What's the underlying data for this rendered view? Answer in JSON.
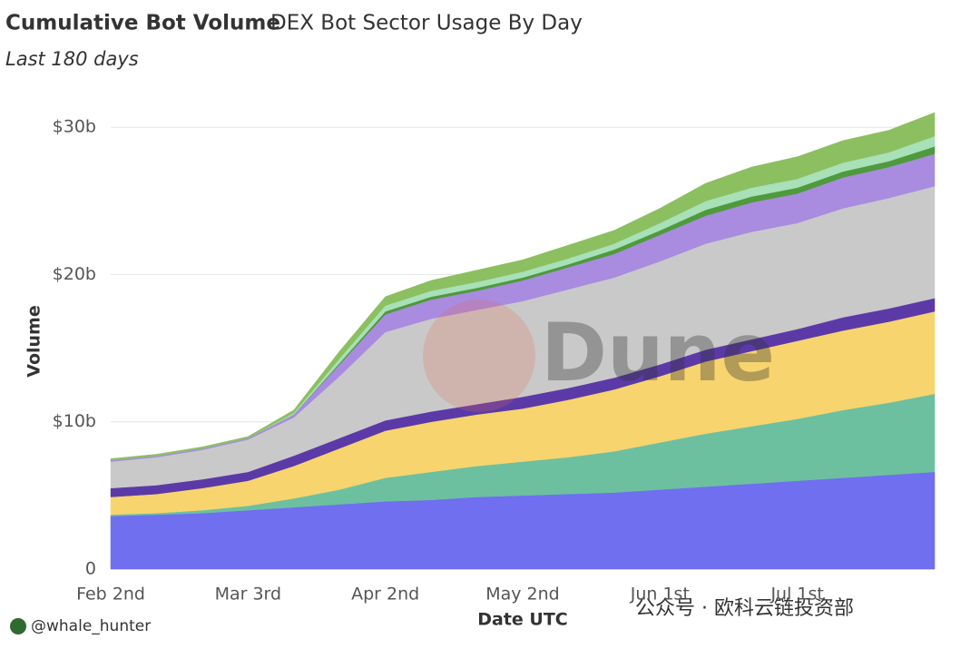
{
  "chart_data": {
    "type": "stacked_area",
    "title": "Cumulative Bot Volume",
    "subtitle": "DEX Bot Sector Usage By Day",
    "caption": "Last 180 days",
    "x_label": "Date UTC",
    "y_label": "Volume",
    "categories": [
      "Feb 2nd",
      null,
      null,
      "Mar 3rd",
      null,
      null,
      "Apr 2nd",
      null,
      null,
      "May 2nd",
      null,
      null,
      "Jun 1st",
      null,
      null,
      "Jul 1st",
      null,
      null,
      null
    ],
    "ylim": [
      0,
      31
    ],
    "yticks": [
      0,
      {
        "value": 10,
        "label": "$10b"
      },
      {
        "value": 20,
        "label": "$20b"
      },
      {
        "value": 30,
        "label": "$30b"
      }
    ],
    "grid": true,
    "series": [
      {
        "color": "#6f6ff0",
        "values": [
          3.6,
          3.7,
          3.8,
          4.0,
          4.2,
          4.4,
          4.6,
          4.7,
          4.9,
          5.0,
          5.1,
          5.2,
          5.4,
          5.6,
          5.8,
          6.0,
          6.2,
          6.4,
          6.6
        ]
      },
      {
        "color": "#6cc0a0",
        "values": [
          0.1,
          0.1,
          0.2,
          0.3,
          0.6,
          1.0,
          1.6,
          1.9,
          2.1,
          2.3,
          2.5,
          2.8,
          3.2,
          3.6,
          3.9,
          4.2,
          4.6,
          4.9,
          5.3
        ]
      },
      {
        "color": "#f7d46e",
        "values": [
          1.2,
          1.3,
          1.5,
          1.7,
          2.2,
          2.8,
          3.2,
          3.4,
          3.5,
          3.6,
          3.9,
          4.2,
          4.5,
          4.9,
          5.1,
          5.3,
          5.4,
          5.5,
          5.6
        ]
      },
      {
        "color": "#5b3aa8",
        "values": [
          0.6,
          0.6,
          0.6,
          0.6,
          0.7,
          0.7,
          0.7,
          0.7,
          0.7,
          0.8,
          0.8,
          0.8,
          0.8,
          0.8,
          0.8,
          0.8,
          0.9,
          0.9,
          0.9
        ]
      },
      {
        "color": "#c9c9c9",
        "values": [
          1.8,
          1.9,
          2.0,
          2.2,
          2.6,
          4.2,
          6.0,
          6.3,
          6.4,
          6.5,
          6.7,
          6.8,
          7.0,
          7.2,
          7.3,
          7.2,
          7.4,
          7.5,
          7.6
        ]
      },
      {
        "color": "#a98be0",
        "values": [
          0.1,
          0.1,
          0.1,
          0.1,
          0.2,
          0.8,
          1.2,
          1.3,
          1.3,
          1.4,
          1.5,
          1.6,
          1.8,
          1.9,
          2.0,
          2.0,
          2.1,
          2.1,
          2.2
        ]
      },
      {
        "color": "#4f9a3c",
        "values": [
          0,
          0,
          0,
          0,
          0,
          0.1,
          0.2,
          0.2,
          0.2,
          0.2,
          0.2,
          0.3,
          0.3,
          0.4,
          0.4,
          0.4,
          0.4,
          0.4,
          0.5
        ]
      },
      {
        "color": "#a8e0b8",
        "values": [
          0,
          0,
          0,
          0,
          0.1,
          0.3,
          0.4,
          0.4,
          0.4,
          0.4,
          0.4,
          0.4,
          0.5,
          0.6,
          0.6,
          0.6,
          0.6,
          0.6,
          0.7
        ]
      },
      {
        "color": "#8cbf60",
        "values": [
          0.1,
          0.1,
          0.1,
          0.1,
          0.2,
          0.5,
          0.6,
          0.7,
          0.8,
          0.8,
          0.9,
          0.9,
          1.0,
          1.2,
          1.4,
          1.5,
          1.5,
          1.5,
          1.6
        ]
      }
    ]
  },
  "overlay": {
    "watermark": "Dune",
    "credit": "@whale_hunter",
    "channel": "公众号 · 欧科云链投资部"
  }
}
